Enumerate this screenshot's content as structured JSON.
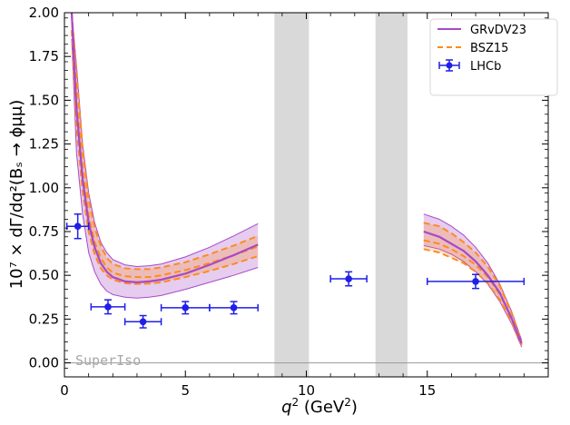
{
  "chart_data": {
    "type": "line",
    "xlabel_main": "q",
    "xlabel_sup": "2",
    "xlabel_unit": " (GeV",
    "xlabel_unit_sup": "2",
    "xlabel_close": ")",
    "ylabel": "10⁷ × dΓ/dq²(Bₛ → ϕμμ)",
    "xlim": [
      0,
      20
    ],
    "ylim": [
      -0.08,
      2.0
    ],
    "x_ticks": [
      0,
      5,
      10,
      15
    ],
    "x_tick_labels": [
      "0",
      "5",
      "10",
      "15"
    ],
    "y_ticks": [
      0.0,
      0.25,
      0.5,
      0.75,
      1.0,
      1.25,
      1.5,
      1.75,
      2.0
    ],
    "y_tick_labels": [
      "0.00",
      "0.25",
      "0.50",
      "0.75",
      "1.00",
      "1.25",
      "1.50",
      "1.75",
      "2.00"
    ],
    "excluded_regions": [
      [
        8.68,
        10.11
      ],
      [
        12.86,
        14.18
      ]
    ],
    "reference_line_y": 0.0,
    "watermark": "SuperIso",
    "legend": {
      "placement": "top-right",
      "entries": [
        {
          "label": "GRvDV23",
          "style": "line",
          "color": "#a74ac7"
        },
        {
          "label": "BSZ15",
          "style": "dashed",
          "color": "#ff8a1f"
        },
        {
          "label": "LHCb",
          "style": "errorbar",
          "color": "#1f1fe8"
        }
      ]
    },
    "series": [
      {
        "name": "GRvDV23",
        "color": "#a74ac7",
        "segments": [
          {
            "x": [
              0.3,
              0.5,
              0.75,
              1.0,
              1.25,
              1.5,
              1.75,
              2.0,
              2.5,
              3.0,
              3.5,
              4.0,
              5.0,
              6.0,
              7.0,
              8.0
            ],
            "center": [
              2.0,
              1.45,
              1.05,
              0.8,
              0.66,
              0.57,
              0.52,
              0.49,
              0.465,
              0.46,
              0.465,
              0.475,
              0.51,
              0.56,
              0.615,
              0.675
            ],
            "lower": [
              1.85,
              1.2,
              0.85,
              0.63,
              0.52,
              0.45,
              0.41,
              0.39,
              0.375,
              0.37,
              0.375,
              0.385,
              0.42,
              0.46,
              0.5,
              0.545
            ],
            "upper": [
              2.0,
              1.7,
              1.25,
              0.97,
              0.8,
              0.69,
              0.63,
              0.59,
              0.56,
              0.55,
              0.555,
              0.565,
              0.605,
              0.66,
              0.725,
              0.795
            ]
          },
          {
            "x": [
              14.85,
              15.5,
              16.0,
              16.5,
              17.0,
              17.5,
              18.0,
              18.5,
              18.9
            ],
            "center": [
              0.75,
              0.72,
              0.68,
              0.64,
              0.58,
              0.5,
              0.4,
              0.25,
              0.11
            ],
            "lower": [
              0.67,
              0.65,
              0.62,
              0.58,
              0.52,
              0.45,
              0.35,
              0.22,
              0.09
            ],
            "upper": [
              0.85,
              0.82,
              0.78,
              0.73,
              0.66,
              0.57,
              0.45,
              0.29,
              0.13
            ]
          }
        ]
      },
      {
        "name": "BSZ15",
        "color": "#ff8a1f",
        "segments": [
          {
            "x": [
              0.3,
              0.5,
              0.75,
              1.0,
              1.25,
              1.5,
              1.75,
              2.0,
              2.5,
              3.0,
              3.5,
              4.0,
              5.0,
              6.0,
              7.0,
              8.0
            ],
            "center": [
              2.0,
              1.5,
              1.1,
              0.84,
              0.69,
              0.6,
              0.545,
              0.515,
              0.495,
              0.49,
              0.49,
              0.5,
              0.53,
              0.57,
              0.615,
              0.665
            ],
            "lower": [
              1.9,
              1.35,
              0.98,
              0.75,
              0.62,
              0.54,
              0.5,
              0.475,
              0.455,
              0.45,
              0.452,
              0.46,
              0.49,
              0.525,
              0.565,
              0.61
            ],
            "upper": [
              2.0,
              1.65,
              1.22,
              0.93,
              0.77,
              0.67,
              0.6,
              0.565,
              0.54,
              0.535,
              0.535,
              0.545,
              0.575,
              0.62,
              0.67,
              0.725
            ]
          },
          {
            "x": [
              14.85,
              15.5,
              16.0,
              16.5,
              17.0,
              17.5,
              18.0,
              18.5,
              18.9
            ],
            "center": [
              0.7,
              0.68,
              0.65,
              0.61,
              0.56,
              0.49,
              0.39,
              0.25,
              0.11
            ],
            "lower": [
              0.65,
              0.63,
              0.6,
              0.57,
              0.52,
              0.455,
              0.36,
              0.23,
              0.1
            ],
            "upper": [
              0.8,
              0.78,
              0.74,
              0.69,
              0.63,
              0.55,
              0.44,
              0.28,
              0.12
            ]
          }
        ]
      }
    ],
    "lhcb_points": [
      {
        "x": 0.55,
        "xerr": [
          0.45,
          0.45
        ],
        "y": 0.78,
        "yerr": [
          0.07,
          0.07
        ]
      },
      {
        "x": 1.8,
        "xerr": [
          0.7,
          0.7
        ],
        "y": 0.32,
        "yerr": [
          0.04,
          0.04
        ]
      },
      {
        "x": 3.25,
        "xerr": [
          0.75,
          0.75
        ],
        "y": 0.235,
        "yerr": [
          0.035,
          0.035
        ]
      },
      {
        "x": 5.0,
        "xerr": [
          1.0,
          1.0
        ],
        "y": 0.315,
        "yerr": [
          0.035,
          0.035
        ]
      },
      {
        "x": 7.0,
        "xerr": [
          1.0,
          1.0
        ],
        "y": 0.315,
        "yerr": [
          0.035,
          0.035
        ]
      },
      {
        "x": 11.75,
        "xerr": [
          0.75,
          0.75
        ],
        "y": 0.48,
        "yerr": [
          0.04,
          0.04
        ]
      },
      {
        "x": 17.0,
        "xerr": [
          2.0,
          2.0
        ],
        "y": 0.465,
        "yerr": [
          0.04,
          0.04
        ]
      }
    ]
  }
}
